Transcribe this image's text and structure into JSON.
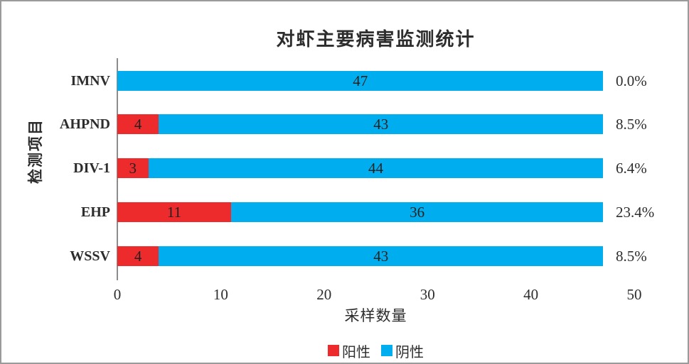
{
  "chart_data": {
    "type": "bar",
    "orientation": "horizontal",
    "stacked": true,
    "title": "对虾主要病害监测统计",
    "xlabel": "采样数量",
    "ylabel": "检测项目",
    "categories": [
      "IMNV",
      "AHPND",
      "DIV-1",
      "EHP",
      "WSSV"
    ],
    "series": [
      {
        "name": "阳性",
        "color": "#ED2A2C",
        "values": [
          0,
          4,
          3,
          11,
          4
        ]
      },
      {
        "name": "阴性",
        "color": "#00AEEF",
        "values": [
          47,
          43,
          44,
          36,
          43
        ]
      }
    ],
    "positive_rate_labels": [
      "0.0%",
      "8.5%",
      "6.4%",
      "23.4%",
      "8.5%"
    ],
    "xlim": [
      0,
      50
    ],
    "xticks": [
      0,
      10,
      20,
      30,
      40,
      50
    ],
    "grid": false,
    "legend_position": "bottom-center",
    "value_labels_shown": true
  },
  "colors": {
    "positive": "#ED2A2C",
    "negative": "#00AEEF",
    "axis": "#8c8c8c",
    "text": "#2d2d2d",
    "frame_border": "#9a9a9a"
  }
}
